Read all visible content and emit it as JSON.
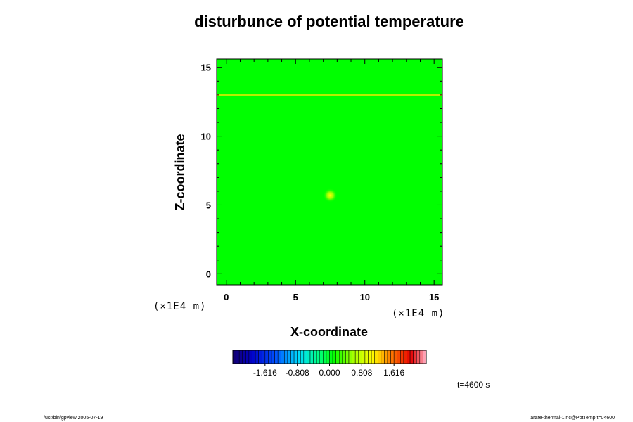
{
  "chart_data": {
    "type": "heatmap",
    "title": "disturbunce of potential temperature",
    "xlabel": "X-coordinate",
    "ylabel": "Z-coordinate",
    "x_units": "(×1E4 m)",
    "z_units": "(×1E4 m)",
    "xlim": [
      -0.7,
      15.6
    ],
    "zlim": [
      -0.8,
      15.6
    ],
    "x_ticks": [
      "0",
      "5",
      "10",
      "15"
    ],
    "z_ticks": [
      "0",
      "5",
      "10",
      "15"
    ],
    "x_tick_values": [
      0,
      5,
      10,
      15
    ],
    "z_tick_values": [
      0,
      5,
      10,
      15
    ],
    "field_description": "near-uniform value close to 0.000; weak warm anomaly near x=7.5, z=5.7; slightly positive horizontal band near z=13",
    "anomalies": [
      {
        "x": 7.5,
        "z": 5.7,
        "level": "slightly positive"
      }
    ],
    "bands": [
      {
        "z": 13.0,
        "level": "slightly positive"
      }
    ],
    "colorbar": {
      "tick_labels": [
        "-1.616",
        "-0.808",
        "0.000",
        "0.808",
        "1.616"
      ],
      "tick_values": [
        -1.616,
        -0.808,
        0.0,
        0.808,
        1.616
      ],
      "range": [
        -2.424,
        2.424
      ],
      "colormap": "rainbow: dark blue → cyan → green → yellow → red → pink",
      "background_color": "#00ff00"
    },
    "time_label": "t=4600 s",
    "grid": false
  },
  "footer": {
    "left": "/usr/bin/gpview 2005-07-19",
    "right": "arare-thermal-1.nc@PotTemp,t=04600"
  }
}
